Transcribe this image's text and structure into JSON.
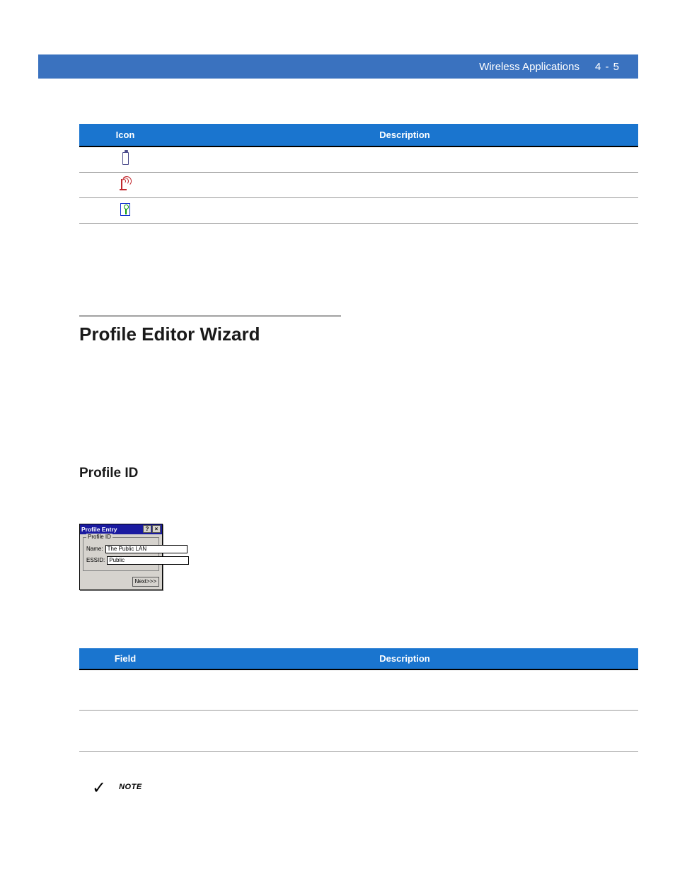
{
  "header": {
    "chapter_title": "Wireless Applications",
    "page_number": "4 - 5"
  },
  "table_icons": {
    "columns": [
      "Icon",
      "Description"
    ],
    "rows": [
      {
        "icon_name": "battery-icon",
        "description": ""
      },
      {
        "icon_name": "signal-icon",
        "description": ""
      },
      {
        "icon_name": "key-icon",
        "description": ""
      }
    ]
  },
  "section": {
    "heading": "Profile Editor Wizard",
    "sub_heading": "Profile ID"
  },
  "profile_entry_window": {
    "title": "Profile Entry",
    "help_button": "?",
    "close_button": "×",
    "group_legend": "Profile ID",
    "name_label": "Name:",
    "name_value": "The Public LAN",
    "essid_label": "ESSID:",
    "essid_value": "Public",
    "next_button": "Next>>>"
  },
  "table_fields": {
    "columns": [
      "Field",
      "Description"
    ],
    "rows": [
      {
        "field": "",
        "description": ""
      },
      {
        "field": "",
        "description": ""
      }
    ]
  },
  "note": {
    "checkmark": "✓",
    "label": "NOTE"
  },
  "style": {
    "header_bg": "#3a72bf",
    "table_head_bg": "#1a75cf",
    "table_head_fg": "#ffffff",
    "battery_icon_color": "#4c4c8c",
    "signal_icon_color": "#c1272d",
    "key_icon_border": "#1030d0",
    "key_icon_inner": "#0e9d0e",
    "mini_titlebar_bg": "#1a1aa0",
    "mini_body_bg": "#d6d3ce"
  }
}
